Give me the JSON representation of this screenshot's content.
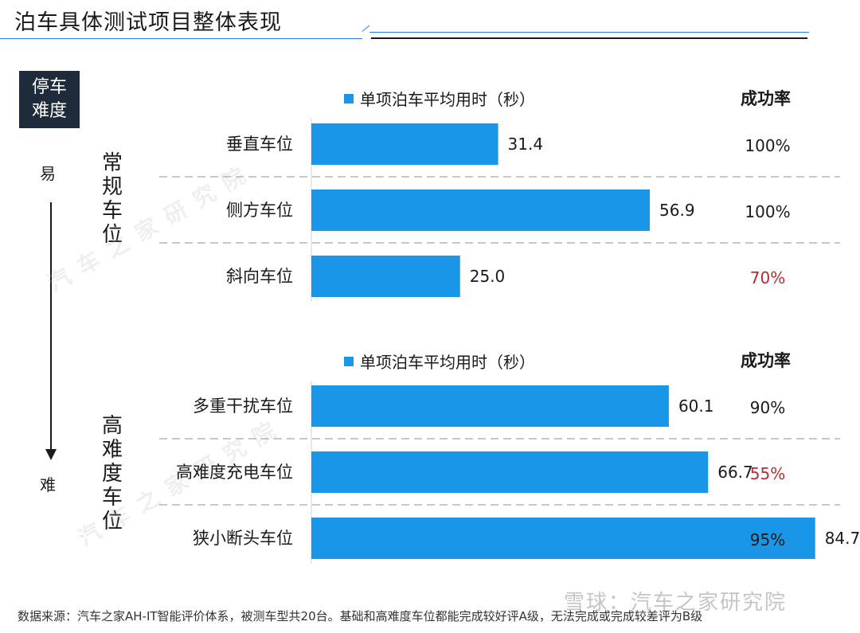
{
  "page": {
    "title": "泊车具体测试项目整体表现",
    "difficulty_box": [
      "停车",
      "难度"
    ],
    "axis": {
      "easy": "易",
      "hard": "难"
    },
    "groups": [
      {
        "label": "常规车位"
      },
      {
        "label": "高难度车位"
      }
    ],
    "legend_label": "单项泊车平均用时（秒）",
    "rate_header": "成功率",
    "watermark": "汽车之家研究院",
    "footer_note": "数据来源：汽车之家AH-IT智能评价体系，被测车型共20台。基础和高难度车位都能完成较好评A级，无法完成或完成较差评为B级",
    "footer_logo": "雪球：汽车之家研究院"
  },
  "chart_data": {
    "type": "bar",
    "orientation": "horizontal",
    "series": [
      {
        "name": "单项泊车平均用时（秒）",
        "color": "#1a96e8"
      }
    ],
    "xlim": [
      0,
      100
    ],
    "groups": [
      {
        "name": "常规车位",
        "categories": [
          "垂直车位",
          "侧方车位",
          "斜向车位"
        ],
        "values": [
          31.4,
          56.9,
          25.0
        ],
        "value_labels": [
          "31.4",
          "56.9",
          "25.0"
        ],
        "success_rate": [
          "100%",
          "100%",
          "70%"
        ],
        "rate_highlight": [
          false,
          false,
          true
        ]
      },
      {
        "name": "高难度车位",
        "categories": [
          "多重干扰车位",
          "高难度充电车位",
          "狭小断头车位"
        ],
        "values": [
          60.1,
          66.7,
          84.7
        ],
        "value_labels": [
          "60.1",
          "66.7",
          "84.7"
        ],
        "success_rate": [
          "90%",
          "55%",
          "95%"
        ],
        "rate_highlight": [
          false,
          true,
          false
        ]
      }
    ],
    "colors": {
      "bar": "#1a96e8",
      "rate_normal": "#1a1a1a",
      "rate_low": "#c0282b"
    }
  }
}
